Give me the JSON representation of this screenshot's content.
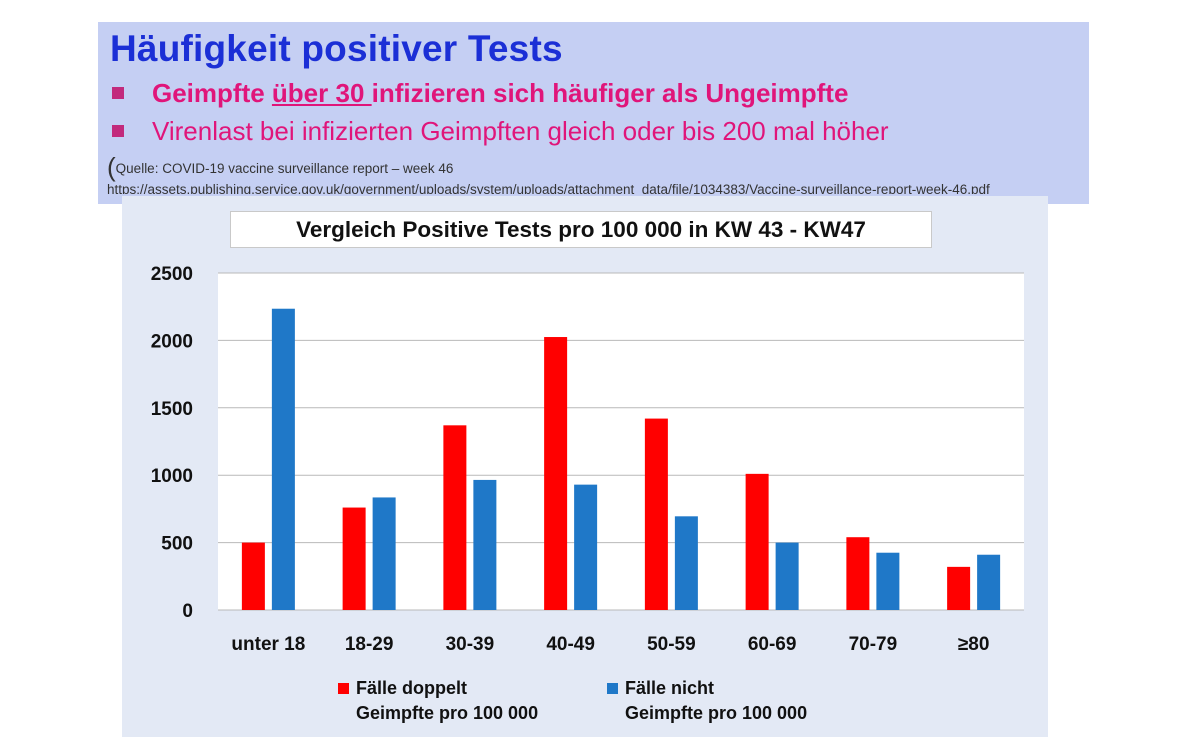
{
  "slide": {
    "title": "Häufigkeit positiver Tests",
    "bullet1_pre": "Geimpfte ",
    "bullet1_underlined": "über 30 ",
    "bullet1_post": "infizieren sich häufiger als Ungeimpfte",
    "bullet2": "Virenlast bei infizierten Geimpften gleich oder bis 200 mal höher",
    "source_paren": "(",
    "source": "Quelle: COVID-19 vaccine surveillance report – week 46 https://assets.publishing.service.gov.uk/government/uploads/system/uploads/attachment_data/file/1034383/Vaccine-surveillance-report-week-46.pdf",
    "colors": {
      "title": "#1b2fd6",
      "bullet_text": "#e0157a",
      "bullet_square": "#c22a7c",
      "header_bg": "#c5cff3"
    }
  },
  "chart_data": {
    "type": "bar",
    "title": "Vergleich Positive Tests pro 100 000 in KW 43 - KW47",
    "categories": [
      "unter 18",
      "18-29",
      "30-39",
      "40-49",
      "50-59",
      "60-69",
      "70-79",
      "≥80"
    ],
    "series": [
      {
        "name_line1": "Fälle doppelt",
        "name_line2": "Geimpfte pro 100 000",
        "color": "#ff0000",
        "values": [
          500,
          760,
          1370,
          2025,
          1420,
          1010,
          540,
          320
        ]
      },
      {
        "name_line1": "Fälle nicht",
        "name_line2": "Geimpfte pro 100 000",
        "color": "#1f78c8",
        "values": [
          2235,
          835,
          965,
          930,
          695,
          500,
          425,
          410
        ]
      }
    ],
    "yticks": [
      "0",
      "500",
      "1000",
      "1500",
      "2000",
      "2500"
    ],
    "ylim": [
      0,
      2500
    ],
    "grid": true,
    "legend_position": "bottom"
  }
}
